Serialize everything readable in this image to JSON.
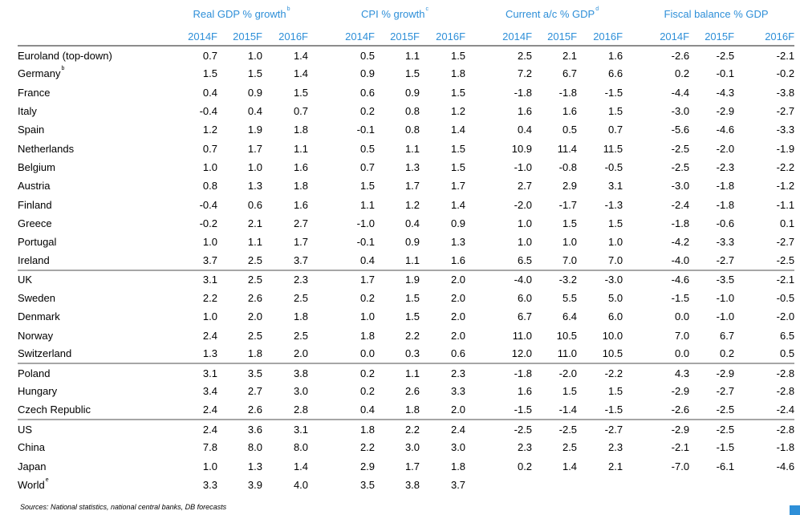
{
  "groups": [
    {
      "title": "Real GDP % growth",
      "sup": "b"
    },
    {
      "title": "CPI % growth",
      "sup": "c"
    },
    {
      "title": "Current a/c % GDP",
      "sup": "d"
    },
    {
      "title": "Fiscal balance % GDP",
      "sup": ""
    }
  ],
  "years": [
    "2014F",
    "2015F",
    "2016F"
  ],
  "rows": [
    {
      "country": "Euroland (top-down)",
      "sup": "",
      "v": [
        "0.7",
        "1.0",
        "1.4",
        "0.5",
        "1.1",
        "1.5",
        "2.5",
        "2.1",
        "1.6",
        "-2.6",
        "-2.5",
        "-2.1"
      ]
    },
    {
      "country": "Germany",
      "sup": "b",
      "v": [
        "1.5",
        "1.5",
        "1.4",
        "0.9",
        "1.5",
        "1.8",
        "7.2",
        "6.7",
        "6.6",
        "0.2",
        "-0.1",
        "-0.2"
      ]
    },
    {
      "country": "France",
      "sup": "",
      "v": [
        "0.4",
        "0.9",
        "1.5",
        "0.6",
        "0.9",
        "1.5",
        "-1.8",
        "-1.8",
        "-1.5",
        "-4.4",
        "-4.3",
        "-3.8"
      ]
    },
    {
      "country": "Italy",
      "sup": "",
      "v": [
        "-0.4",
        "0.4",
        "0.7",
        "0.2",
        "0.8",
        "1.2",
        "1.6",
        "1.6",
        "1.5",
        "-3.0",
        "-2.9",
        "-2.7"
      ]
    },
    {
      "country": "Spain",
      "sup": "",
      "v": [
        "1.2",
        "1.9",
        "1.8",
        "-0.1",
        "0.8",
        "1.4",
        "0.4",
        "0.5",
        "0.7",
        "-5.6",
        "-4.6",
        "-3.3"
      ]
    },
    {
      "country": "Netherlands",
      "sup": "",
      "v": [
        "0.7",
        "1.7",
        "1.1",
        "0.5",
        "1.1",
        "1.5",
        "10.9",
        "11.4",
        "11.5",
        "-2.5",
        "-2.0",
        "-1.9"
      ]
    },
    {
      "country": "Belgium",
      "sup": "",
      "v": [
        "1.0",
        "1.0",
        "1.6",
        "0.7",
        "1.3",
        "1.5",
        "-1.0",
        "-0.8",
        "-0.5",
        "-2.5",
        "-2.3",
        "-2.2"
      ]
    },
    {
      "country": "Austria",
      "sup": "",
      "v": [
        "0.8",
        "1.3",
        "1.8",
        "1.5",
        "1.7",
        "1.7",
        "2.7",
        "2.9",
        "3.1",
        "-3.0",
        "-1.8",
        "-1.2"
      ]
    },
    {
      "country": "Finland",
      "sup": "",
      "v": [
        "-0.4",
        "0.6",
        "1.6",
        "1.1",
        "1.2",
        "1.4",
        "-2.0",
        "-1.7",
        "-1.3",
        "-2.4",
        "-1.8",
        "-1.1"
      ]
    },
    {
      "country": "Greece",
      "sup": "",
      "v": [
        "-0.2",
        "2.1",
        "2.7",
        "-1.0",
        "0.4",
        "0.9",
        "1.0",
        "1.5",
        "1.5",
        "-1.8",
        "-0.6",
        "0.1"
      ]
    },
    {
      "country": "Portugal",
      "sup": "",
      "v": [
        "1.0",
        "1.1",
        "1.7",
        "-0.1",
        "0.9",
        "1.3",
        "1.0",
        "1.0",
        "1.0",
        "-4.2",
        "-3.3",
        "-2.7"
      ]
    },
    {
      "country": "Ireland",
      "sup": "",
      "v": [
        "3.7",
        "2.5",
        "3.7",
        "0.4",
        "1.1",
        "1.6",
        "6.5",
        "7.0",
        "7.0",
        "-4.0",
        "-2.7",
        "-2.5"
      ]
    },
    {
      "country": "UK",
      "sup": "",
      "sep": true,
      "v": [
        "3.1",
        "2.5",
        "2.3",
        "1.7",
        "1.9",
        "2.0",
        "-4.0",
        "-3.2",
        "-3.0",
        "-4.6",
        "-3.5",
        "-2.1"
      ]
    },
    {
      "country": "Sweden",
      "sup": "",
      "v": [
        "2.2",
        "2.6",
        "2.5",
        "0.2",
        "1.5",
        "2.0",
        "6.0",
        "5.5",
        "5.0",
        "-1.5",
        "-1.0",
        "-0.5"
      ]
    },
    {
      "country": "Denmark",
      "sup": "",
      "v": [
        "1.0",
        "2.0",
        "1.8",
        "1.0",
        "1.5",
        "2.0",
        "6.7",
        "6.4",
        "6.0",
        "0.0",
        "-1.0",
        "-2.0"
      ]
    },
    {
      "country": "Norway",
      "sup": "",
      "v": [
        "2.4",
        "2.5",
        "2.5",
        "1.8",
        "2.2",
        "2.0",
        "11.0",
        "10.5",
        "10.0",
        "7.0",
        "6.7",
        "6.5"
      ]
    },
    {
      "country": "Switzerland",
      "sup": "",
      "v": [
        "1.3",
        "1.8",
        "2.0",
        "0.0",
        "0.3",
        "0.6",
        "12.0",
        "11.0",
        "10.5",
        "0.0",
        "0.2",
        "0.5"
      ]
    },
    {
      "country": "Poland",
      "sup": "",
      "sep": true,
      "v": [
        "3.1",
        "3.5",
        "3.8",
        "0.2",
        "1.1",
        "2.3",
        "-1.8",
        "-2.0",
        "-2.2",
        "4.3",
        "-2.9",
        "-2.8"
      ]
    },
    {
      "country": "Hungary",
      "sup": "",
      "v": [
        "3.4",
        "2.7",
        "3.0",
        "0.2",
        "2.6",
        "3.3",
        "1.6",
        "1.5",
        "1.5",
        "-2.9",
        "-2.7",
        "-2.8"
      ]
    },
    {
      "country": "Czech Republic",
      "sup": "",
      "v": [
        "2.4",
        "2.6",
        "2.8",
        "0.4",
        "1.8",
        "2.0",
        "-1.5",
        "-1.4",
        "-1.5",
        "-2.6",
        "-2.5",
        "-2.4"
      ]
    },
    {
      "country": "US",
      "sup": "",
      "sep": true,
      "v": [
        "2.4",
        "3.6",
        "3.1",
        "1.8",
        "2.2",
        "2.4",
        "-2.5",
        "-2.5",
        "-2.7",
        "-2.9",
        "-2.5",
        "-2.8"
      ]
    },
    {
      "country": "China",
      "sup": "",
      "v": [
        "7.8",
        "8.0",
        "8.0",
        "2.2",
        "3.0",
        "3.0",
        "2.3",
        "2.5",
        "2.3",
        "-2.1",
        "-1.5",
        "-1.8"
      ]
    },
    {
      "country": "Japan",
      "sup": "",
      "v": [
        "1.0",
        "1.3",
        "1.4",
        "2.9",
        "1.7",
        "1.8",
        "0.2",
        "1.4",
        "2.1",
        "-7.0",
        "-6.1",
        "-4.6"
      ]
    },
    {
      "country": "World",
      "sup": "e",
      "v": [
        "3.3",
        "3.9",
        "4.0",
        "3.5",
        "3.8",
        "3.7",
        "",
        "",
        "",
        "",
        "",
        ""
      ]
    }
  ],
  "source": "Sources: National statistics, national central banks, DB forecasts",
  "colors": {
    "accent": "#2e8fd8",
    "rule": "#8c8c8c"
  }
}
